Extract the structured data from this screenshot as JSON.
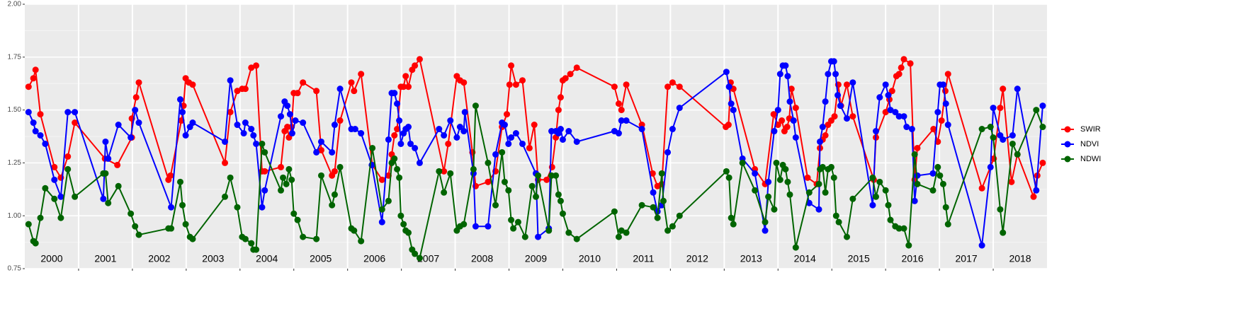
{
  "chart_data": {
    "type": "line",
    "xlim": [
      2000,
      2019
    ],
    "xticks": [
      2001,
      2002,
      2003,
      2004,
      2005,
      2006,
      2007,
      2008,
      2009,
      2010,
      2011,
      2012,
      2013,
      2014,
      2015,
      2016,
      2017,
      2018
    ],
    "year_labels": [
      "2000",
      "2001",
      "2002",
      "2003",
      "2004",
      "2005",
      "2006",
      "2007",
      "2008",
      "2009",
      "2010",
      "2011",
      "2012",
      "2013",
      "2014",
      "2015",
      "2016",
      "2017",
      "2018"
    ],
    "ylim": [
      0.75,
      2
    ],
    "yticks": [
      0.75,
      {
        "value": 1,
        "label": "1.00"
      },
      1.25,
      {
        "value": 1.5,
        "label": "1.50"
      },
      1.75,
      {
        "value": 2,
        "label": "2.00"
      }
    ],
    "grid": true,
    "legend": "right",
    "series": [
      {
        "name": "SWIR",
        "color": "#ff0000",
        "x": [
          2000.07,
          2000.16,
          2000.2,
          2000.29,
          2000.55,
          2000.67,
          2000.8,
          2000.93,
          2001.49,
          2001.72,
          2001.99,
          2001.99,
          2002.07,
          2002.12,
          2002.67,
          2002.71,
          2002.91,
          2002.95,
          2002.99,
          2003.05,
          2003.12,
          2003.72,
          2003.82,
          2003.95,
          2004.04,
          2004.1,
          2004.21,
          2004.3,
          2004.41,
          2004.46,
          2004.76,
          2004.83,
          2004.88,
          2004.91,
          2004.96,
          2005.0,
          2005.07,
          2005.17,
          2005.42,
          2005.51,
          2005.71,
          2005.76,
          2005.86,
          2006.07,
          2006.12,
          2006.25,
          2006.46,
          2006.64,
          2006.76,
          2006.82,
          2006.87,
          2006.92,
          2006.99,
          2007.04,
          2007.08,
          2007.13,
          2007.2,
          2007.25,
          2007.34,
          2007.79,
          2007.87,
          2008.03,
          2008.09,
          2008.16,
          2008.32,
          2008.38,
          2008.61,
          2008.75,
          2008.87,
          2008.96,
          2009.01,
          2009.04,
          2009.13,
          2009.25,
          2009.38,
          2009.47,
          2009.54,
          2009.7,
          2009.8,
          2009.87,
          2009.92,
          2009.96,
          2010.0,
          2010.05,
          2010.14,
          2010.26,
          2010.96,
          2011.04,
          2011.09,
          2011.18,
          2011.47,
          2011.67,
          2011.76,
          2011.84,
          2011.95,
          2012.04,
          2012.17,
          2013.03,
          2013.08,
          2013.12,
          2013.17,
          2013.57,
          2013.76,
          2013.92,
          2014.0,
          2014.07,
          2014.12,
          2014.17,
          2014.21,
          2014.25,
          2014.33,
          2014.55,
          2014.72,
          2014.78,
          2014.83,
          2014.88,
          2014.93,
          2014.99,
          2015.05,
          2015.12,
          2015.17,
          2015.28,
          2015.39,
          2015.78,
          2015.82,
          2016.0,
          2016.07,
          2016.12,
          2016.2,
          2016.25,
          2016.29,
          2016.34,
          2016.46,
          2016.54,
          2016.59,
          2016.89,
          2016.97,
          2017.04,
          2017.11,
          2017.16,
          2017.79,
          2018.01,
          2018.13,
          2018.18,
          2018.34,
          2018.45,
          2018.75,
          2018.82,
          2018.92
        ],
        "values": [
          1.61,
          1.65,
          1.69,
          1.48,
          1.23,
          1.18,
          1.28,
          1.44,
          1.27,
          1.24,
          1.37,
          1.46,
          1.56,
          1.63,
          1.17,
          1.19,
          1.45,
          1.52,
          1.65,
          1.63,
          1.62,
          1.25,
          1.49,
          1.59,
          1.6,
          1.6,
          1.7,
          1.71,
          1.21,
          1.21,
          1.23,
          1.4,
          1.42,
          1.37,
          1.42,
          1.58,
          1.58,
          1.63,
          1.59,
          1.31,
          1.19,
          1.21,
          1.45,
          1.63,
          1.59,
          1.67,
          1.24,
          1.17,
          1.19,
          1.29,
          1.38,
          1.41,
          1.61,
          1.61,
          1.66,
          1.61,
          1.69,
          1.71,
          1.74,
          1.21,
          1.34,
          1.66,
          1.64,
          1.63,
          1.3,
          1.14,
          1.16,
          1.21,
          1.42,
          1.48,
          1.62,
          1.71,
          1.62,
          1.64,
          1.32,
          1.43,
          1.17,
          1.17,
          1.23,
          1.37,
          1.5,
          1.56,
          1.64,
          1.65,
          1.67,
          1.7,
          1.61,
          1.53,
          1.5,
          1.62,
          1.43,
          1.2,
          1.14,
          1.15,
          1.61,
          1.63,
          1.61,
          1.42,
          1.43,
          1.63,
          1.6,
          1.22,
          1.15,
          1.48,
          1.43,
          1.45,
          1.4,
          1.42,
          1.46,
          1.6,
          1.51,
          1.18,
          1.15,
          1.32,
          1.36,
          1.38,
          1.43,
          1.45,
          1.47,
          1.62,
          1.52,
          1.62,
          1.47,
          1.17,
          1.37,
          1.49,
          1.55,
          1.59,
          1.66,
          1.67,
          1.7,
          1.74,
          1.72,
          1.17,
          1.32,
          1.41,
          1.35,
          1.45,
          1.59,
          1.67,
          1.13,
          1.27,
          1.51,
          1.6,
          1.16,
          1.29,
          1.09,
          1.19,
          1.25
        ]
      },
      {
        "name": "NDVI",
        "color": "#0000ff",
        "x": [
          2000.07,
          2000.16,
          2000.2,
          2000.29,
          2000.38,
          2000.55,
          2000.67,
          2000.8,
          2000.93,
          2001.46,
          2001.5,
          2001.55,
          2001.74,
          2001.97,
          2002.05,
          2002.12,
          2002.72,
          2002.89,
          2002.93,
          2002.99,
          2003.07,
          2003.12,
          2003.72,
          2003.82,
          2003.95,
          2004.07,
          2004.1,
          2004.21,
          2004.25,
          2004.3,
          2004.41,
          2004.46,
          2004.76,
          2004.83,
          2004.88,
          2004.93,
          2004.97,
          2005.03,
          2005.17,
          2005.42,
          2005.51,
          2005.71,
          2005.76,
          2005.86,
          2006.07,
          2006.14,
          2006.25,
          2006.45,
          2006.64,
          2006.76,
          2006.82,
          2006.87,
          2006.92,
          2006.96,
          2006.99,
          2007.04,
          2007.08,
          2007.13,
          2007.17,
          2007.25,
          2007.34,
          2007.7,
          2007.79,
          2007.91,
          2008.03,
          2008.09,
          2008.16,
          2008.18,
          2008.34,
          2008.38,
          2008.61,
          2008.75,
          2008.87,
          2008.92,
          2008.99,
          2009.04,
          2009.13,
          2009.25,
          2009.5,
          2009.54,
          2009.74,
          2009.79,
          2009.87,
          2009.92,
          2009.96,
          2010.0,
          2010.11,
          2010.26,
          2010.96,
          2011.04,
          2011.09,
          2011.18,
          2011.47,
          2011.68,
          2011.76,
          2011.84,
          2011.95,
          2012.04,
          2012.17,
          2013.04,
          2013.09,
          2013.13,
          2013.17,
          2013.34,
          2013.57,
          2013.76,
          2013.82,
          2013.93,
          2014.0,
          2014.04,
          2014.09,
          2014.14,
          2014.18,
          2014.22,
          2014.29,
          2014.33,
          2014.58,
          2014.76,
          2014.78,
          2014.83,
          2014.88,
          2014.93,
          2014.99,
          2015.04,
          2015.07,
          2015.11,
          2015.16,
          2015.28,
          2015.39,
          2015.76,
          2015.82,
          2015.89,
          2016.0,
          2016.05,
          2016.09,
          2016.18,
          2016.25,
          2016.34,
          2016.39,
          2016.49,
          2016.54,
          2016.59,
          2016.88,
          2016.97,
          2017.01,
          2017.07,
          2017.12,
          2017.16,
          2017.79,
          2017.95,
          2018.0,
          2018.13,
          2018.18,
          2018.36,
          2018.45,
          2018.8,
          2018.92
        ],
        "values": [
          1.49,
          1.44,
          1.4,
          1.38,
          1.34,
          1.17,
          1.09,
          1.49,
          1.49,
          1.08,
          1.35,
          1.27,
          1.43,
          1.37,
          1.5,
          1.44,
          1.04,
          1.55,
          1.49,
          1.38,
          1.42,
          1.44,
          1.35,
          1.64,
          1.43,
          1.39,
          1.44,
          1.41,
          1.38,
          1.34,
          1.04,
          1.12,
          1.47,
          1.54,
          1.52,
          1.48,
          1.39,
          1.45,
          1.44,
          1.3,
          1.35,
          1.3,
          1.43,
          1.6,
          1.41,
          1.41,
          1.39,
          1.24,
          0.97,
          1.36,
          1.58,
          1.58,
          1.53,
          1.45,
          1.34,
          1.39,
          1.41,
          1.42,
          1.34,
          1.32,
          1.25,
          1.41,
          1.38,
          1.45,
          1.37,
          1.42,
          1.4,
          1.49,
          1.2,
          0.95,
          0.95,
          1.29,
          1.44,
          1.43,
          1.34,
          1.37,
          1.39,
          1.34,
          1.2,
          0.9,
          0.94,
          1.4,
          1.4,
          1.39,
          1.41,
          1.36,
          1.4,
          1.35,
          1.4,
          1.39,
          1.45,
          1.45,
          1.41,
          1.11,
          1.02,
          1.05,
          1.3,
          1.41,
          1.51,
          1.68,
          1.61,
          1.53,
          1.5,
          1.27,
          1.2,
          0.93,
          1.16,
          1.4,
          1.5,
          1.67,
          1.71,
          1.71,
          1.66,
          1.54,
          1.45,
          1.37,
          1.06,
          1.03,
          1.35,
          1.42,
          1.54,
          1.67,
          1.73,
          1.73,
          1.67,
          1.57,
          1.52,
          1.46,
          1.63,
          1.05,
          1.4,
          1.56,
          1.62,
          1.57,
          1.5,
          1.49,
          1.47,
          1.47,
          1.42,
          1.41,
          1.07,
          1.19,
          1.2,
          1.49,
          1.62,
          1.62,
          1.53,
          1.43,
          0.86,
          1.23,
          1.51,
          1.38,
          1.36,
          1.38,
          1.6,
          1.12,
          1.52
        ]
      },
      {
        "name": "NDWI",
        "color": "#006400",
        "x": [
          2000.07,
          2000.16,
          2000.2,
          2000.29,
          2000.38,
          2000.55,
          2000.67,
          2000.8,
          2000.93,
          2001.46,
          2001.5,
          2001.55,
          2001.74,
          2001.97,
          2002.05,
          2002.12,
          2002.67,
          2002.72,
          2002.89,
          2002.93,
          2002.99,
          2003.07,
          2003.12,
          2003.72,
          2003.82,
          2003.95,
          2004.04,
          2004.1,
          2004.21,
          2004.25,
          2004.3,
          2004.41,
          2004.46,
          2004.76,
          2004.8,
          2004.86,
          2004.91,
          2004.96,
          2005.0,
          2005.07,
          2005.17,
          2005.42,
          2005.51,
          2005.71,
          2005.76,
          2005.86,
          2006.07,
          2006.12,
          2006.25,
          2006.46,
          2006.64,
          2006.76,
          2006.82,
          2006.87,
          2006.92,
          2006.96,
          2006.99,
          2007.04,
          2007.08,
          2007.13,
          2007.2,
          2007.25,
          2007.34,
          2007.7,
          2007.79,
          2007.91,
          2008.03,
          2008.09,
          2008.16,
          2008.34,
          2008.38,
          2008.61,
          2008.75,
          2008.87,
          2008.92,
          2008.99,
          2009.04,
          2009.08,
          2009.17,
          2009.3,
          2009.43,
          2009.5,
          2009.54,
          2009.74,
          2009.79,
          2009.87,
          2009.92,
          2009.96,
          2010.0,
          2010.11,
          2010.26,
          2010.96,
          2011.04,
          2011.09,
          2011.18,
          2011.47,
          2011.68,
          2011.76,
          2011.84,
          2011.87,
          2011.95,
          2012.04,
          2012.17,
          2013.04,
          2013.09,
          2013.13,
          2013.17,
          2013.34,
          2013.57,
          2013.76,
          2013.82,
          2013.93,
          2013.97,
          2014.04,
          2014.09,
          2014.14,
          2014.18,
          2014.22,
          2014.33,
          2014.58,
          2014.76,
          2014.78,
          2014.83,
          2014.88,
          2014.93,
          2014.99,
          2015.04,
          2015.08,
          2015.13,
          2015.28,
          2015.39,
          2015.76,
          2015.82,
          2015.89,
          2016.0,
          2016.05,
          2016.09,
          2016.18,
          2016.25,
          2016.34,
          2016.43,
          2016.54,
          2016.59,
          2016.88,
          2016.97,
          2017.01,
          2017.07,
          2017.12,
          2017.16,
          2017.79,
          2017.95,
          2018.0,
          2018.13,
          2018.18,
          2018.36,
          2018.45,
          2018.8,
          2018.92
        ],
        "values": [
          0.96,
          0.88,
          0.87,
          0.99,
          1.13,
          1.08,
          0.99,
          1.22,
          1.09,
          1.2,
          1.2,
          1.06,
          1.14,
          1.01,
          0.95,
          0.91,
          0.94,
          0.94,
          1.16,
          1.05,
          0.96,
          0.9,
          0.89,
          1.09,
          1.18,
          1.04,
          0.9,
          0.89,
          0.87,
          0.84,
          0.84,
          1.34,
          1.3,
          1.12,
          1.18,
          1.15,
          1.22,
          1.17,
          1.01,
          0.98,
          0.9,
          0.89,
          1.19,
          1.05,
          1.1,
          1.23,
          0.94,
          0.93,
          0.88,
          1.32,
          1.03,
          1.07,
          1.25,
          1.27,
          1.22,
          1.18,
          1.0,
          0.96,
          0.93,
          0.92,
          0.84,
          0.82,
          0.8,
          1.21,
          1.11,
          1.2,
          0.93,
          0.95,
          0.96,
          1.22,
          1.52,
          1.25,
          1.05,
          1.3,
          1.16,
          1.12,
          0.98,
          0.94,
          0.97,
          0.9,
          1.14,
          1.09,
          1.19,
          0.93,
          1.19,
          1.19,
          1.1,
          1.07,
          1.01,
          0.92,
          0.89,
          1.02,
          0.9,
          0.93,
          0.92,
          1.05,
          1.04,
          0.99,
          1.2,
          1.07,
          0.93,
          0.95,
          1.0,
          1.21,
          1.18,
          0.99,
          0.96,
          1.25,
          1.12,
          0.97,
          1.09,
          1.03,
          1.25,
          1.17,
          1.24,
          1.22,
          1.16,
          1.1,
          0.85,
          1.11,
          1.15,
          1.22,
          1.23,
          1.11,
          1.22,
          1.23,
          1.18,
          1.0,
          0.97,
          0.9,
          1.08,
          1.18,
          1.09,
          1.16,
          1.12,
          1.05,
          0.98,
          0.95,
          0.94,
          0.94,
          0.86,
          1.29,
          1.15,
          1.12,
          1.23,
          1.19,
          1.15,
          1.04,
          0.96,
          1.41,
          1.42,
          1.37,
          1.03,
          0.92,
          1.34,
          1.29,
          1.5,
          1.42
        ]
      }
    ]
  }
}
